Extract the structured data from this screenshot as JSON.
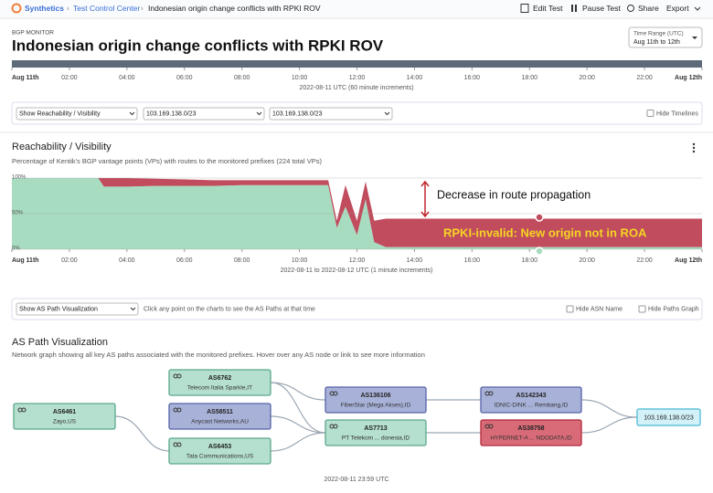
{
  "breadcrumb": [
    "Synthetics",
    "Test Control Center",
    "Indonesian origin change conflicts with RPKI ROV"
  ],
  "actions": [
    "Edit Test",
    "Pause Test",
    "Share",
    "Export"
  ],
  "header": {
    "eyebrow": "BGP MONITOR",
    "title": "Indonesian origin change conflicts with RPKI ROV"
  },
  "time_range": {
    "label": "Time Range (UTC)",
    "value": "Aug 11th to 12th"
  },
  "timeline": {
    "xticks": [
      {
        "value": 0,
        "label": "Aug 11th"
      },
      {
        "value": 2,
        "label": "02:00"
      },
      {
        "value": 4,
        "label": "04:00"
      },
      {
        "value": 6,
        "label": "06:00"
      },
      {
        "value": 8,
        "label": "08:00"
      },
      {
        "value": 10,
        "label": "10:00"
      },
      {
        "value": 12,
        "label": "12:00"
      },
      {
        "value": 14,
        "label": "14:00"
      },
      {
        "value": 16,
        "label": "16:00"
      },
      {
        "value": 18,
        "label": "18:00"
      },
      {
        "value": 20,
        "label": "20:00"
      },
      {
        "value": 22,
        "label": "22:00"
      },
      {
        "value": 24,
        "label": "Aug 12th"
      }
    ],
    "caption": "2022-08-11 UTC (60 minute increments)"
  },
  "filters": {
    "selects": [
      "Show Reachability / Visibility",
      "103.169.138.0/23",
      "103.169.138.0/23"
    ],
    "checkbox": "Hide Timelines"
  },
  "reachability": {
    "title": "Reachability / Visibility",
    "subtitle": "Percentage of Kentik's BGP vantage points (VPs) with routes to the monitored prefixes (224 total VPs)",
    "x": [
      0,
      1,
      2,
      3,
      3.2,
      4,
      5,
      6,
      7,
      8,
      9,
      10,
      11,
      11.3,
      11.6,
      12,
      12.3,
      12.6,
      13,
      14,
      15,
      16,
      17,
      18,
      19,
      20,
      21,
      22,
      23,
      24
    ],
    "series": [
      {
        "color": "#a8dcc0",
        "values": [
          100,
          100,
          100,
          100,
          88,
          88,
          89,
          89,
          89,
          90,
          90,
          90,
          90,
          30,
          60,
          20,
          70,
          10,
          3,
          3,
          3,
          3,
          3,
          3,
          3,
          3,
          3,
          3,
          3,
          3
        ]
      },
      {
        "color": "#c04c5e",
        "values": [
          0,
          0,
          0,
          0,
          12,
          12,
          10,
          9,
          8,
          7,
          7,
          7,
          7,
          10,
          30,
          20,
          25,
          30,
          40,
          40,
          40,
          40,
          40,
          40,
          40,
          40,
          40,
          40,
          40,
          40
        ]
      }
    ],
    "ylim": [
      0,
      100
    ],
    "yticks": [
      {
        "value": 100,
        "label": "100%"
      },
      {
        "value": 50,
        "label": "50%"
      },
      {
        "value": 0,
        "label": "0%"
      }
    ],
    "xlim": [
      0,
      24
    ],
    "xticks": [
      {
        "value": 0,
        "label": "Aug 11th"
      },
      {
        "value": 2,
        "label": "02:00"
      },
      {
        "value": 4,
        "label": "04:00"
      },
      {
        "value": 6,
        "label": "06:00"
      },
      {
        "value": 8,
        "label": "08:00"
      },
      {
        "value": 10,
        "label": "10:00"
      },
      {
        "value": 12,
        "label": "12:00"
      },
      {
        "value": 14,
        "label": "14:00"
      },
      {
        "value": 16,
        "label": "16:00"
      },
      {
        "value": 18,
        "label": "18:00"
      },
      {
        "value": 20,
        "label": "20:00"
      },
      {
        "value": 22,
        "label": "22:00"
      },
      {
        "value": 24,
        "label": "Aug 12th"
      }
    ],
    "caption": "2022-08-11 to 2022-08-12 UTC (1 minute increments)",
    "annotations": [
      "Decrease in route propagation",
      "RPKI-invalid: New origin not in ROA"
    ]
  },
  "path_controls": {
    "select": "Show AS Path Visualization",
    "hint": "Click any point on the charts to see the AS Paths at that time",
    "checkboxes": [
      "Hide ASN Name",
      "Hide Paths Graph"
    ]
  },
  "as_path": {
    "title": "AS Path Visualization",
    "subtitle": "Network graph showing all key AS paths associated with the monitored prefixes. Hover over any AS node or link to see more information",
    "nodes": [
      {
        "asn": "AS6461",
        "name": "Zayo,US"
      },
      {
        "asn": "AS6762",
        "name": "Telecom Italia Sparkle,IT"
      },
      {
        "asn": "AS58511",
        "name": "Anycast Networks,AU"
      },
      {
        "asn": "AS6453",
        "name": "Tata Communications,US"
      },
      {
        "asn": "AS136106",
        "name": "FiberStar (Mega Akses),ID"
      },
      {
        "asn": "AS7713",
        "name": "PT Telekom ... donesia,ID"
      },
      {
        "asn": "AS142343",
        "name": "IDNIC-DINK ... Rembang,ID"
      },
      {
        "asn": "AS38758",
        "name": "HYPERNET-A ... NDODATA,ID"
      }
    ],
    "prefix": "103.169.138.0/23",
    "footer": "2022-08-11 23:59 UTC"
  }
}
